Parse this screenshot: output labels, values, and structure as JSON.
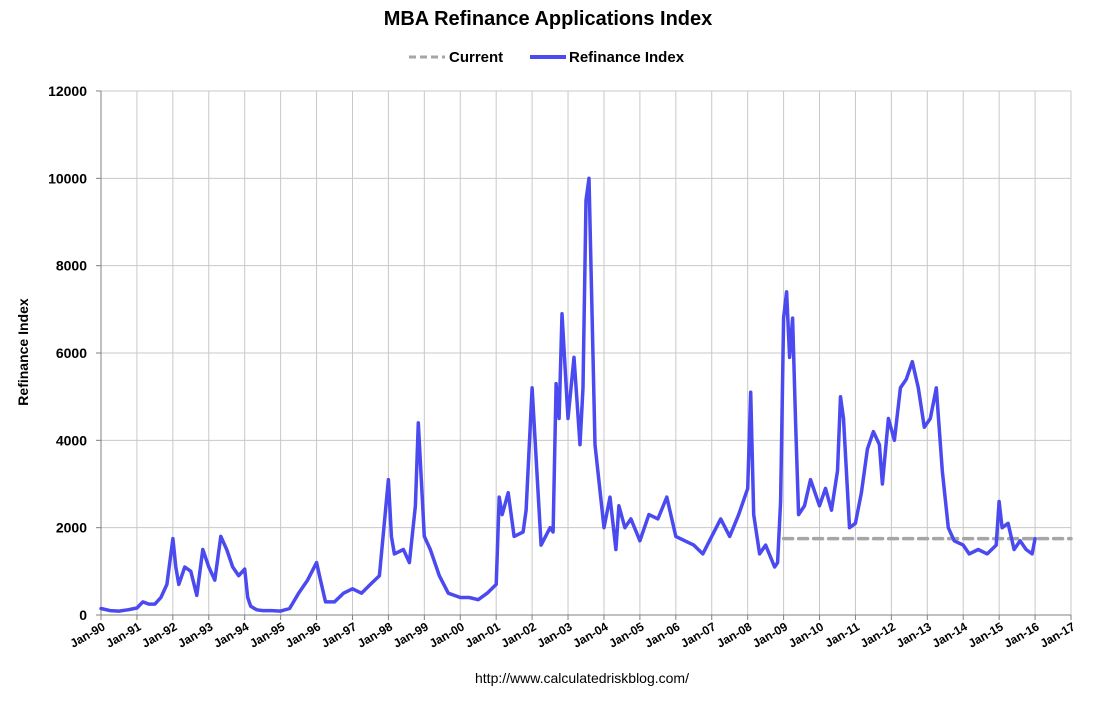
{
  "chart_data": {
    "type": "line",
    "title": "MBA Refinance Applications Index",
    "ylabel": "Refinance Index",
    "xlabel": "",
    "ylim": [
      0,
      12000
    ],
    "xlim": [
      "Jan-90",
      "Jan-17"
    ],
    "y_ticks": [
      "0",
      "2000",
      "4000",
      "6000",
      "8000",
      "10000",
      "12000"
    ],
    "x_ticks": [
      "Jan-90",
      "Jan-91",
      "Jan-92",
      "Jan-93",
      "Jan-94",
      "Jan-95",
      "Jan-96",
      "Jan-97",
      "Jan-98",
      "Jan-99",
      "Jan-00",
      "Jan-01",
      "Jan-02",
      "Jan-03",
      "Jan-04",
      "Jan-05",
      "Jan-06",
      "Jan-07",
      "Jan-08",
      "Jan-09",
      "Jan-10",
      "Jan-11",
      "Jan-12",
      "Jan-13",
      "Jan-14",
      "Jan-15",
      "Jan-16",
      "Jan-17"
    ],
    "grid": true,
    "legend_position": "top-center",
    "source": "http://www.calculatedriskblog.com/",
    "series": [
      {
        "name": "Current",
        "style": "dashed",
        "color": "#a6a6a6",
        "x": [
          "2009-01",
          "2017-01"
        ],
        "y": [
          1750,
          1750
        ]
      },
      {
        "name": "Refinance Index",
        "style": "solid",
        "color": "#4a4af0",
        "x": [
          "1990-01",
          "1990-04",
          "1990-07",
          "1990-10",
          "1991-01",
          "1991-03",
          "1991-05",
          "1991-07",
          "1991-09",
          "1991-11",
          "1992-01",
          "1992-02",
          "1992-03",
          "1992-05",
          "1992-07",
          "1992-09",
          "1992-11",
          "1993-01",
          "1993-03",
          "1993-05",
          "1993-07",
          "1993-09",
          "1993-11",
          "1994-01",
          "1994-02",
          "1994-03",
          "1994-05",
          "1994-07",
          "1994-10",
          "1995-01",
          "1995-04",
          "1995-07",
          "1995-10",
          "1996-01",
          "1996-02",
          "1996-04",
          "1996-07",
          "1996-10",
          "1997-01",
          "1997-04",
          "1997-07",
          "1997-10",
          "1998-01",
          "1998-02",
          "1998-03",
          "1998-06",
          "1998-08",
          "1998-10",
          "1998-11",
          "1999-01",
          "1999-03",
          "1999-06",
          "1999-09",
          "2000-01",
          "2000-04",
          "2000-07",
          "2000-10",
          "2001-01",
          "2001-02",
          "2001-03",
          "2001-05",
          "2001-07",
          "2001-10",
          "2001-11",
          "2002-01",
          "2002-04",
          "2002-07",
          "2002-08",
          "2002-09",
          "2002-10",
          "2002-11",
          "2003-01",
          "2003-03",
          "2003-05",
          "2003-06",
          "2003-07",
          "2003-08",
          "2003-10",
          "2004-01",
          "2004-03",
          "2004-05",
          "2004-06",
          "2004-08",
          "2004-10",
          "2005-01",
          "2005-04",
          "2005-07",
          "2005-10",
          "2006-01",
          "2006-04",
          "2006-07",
          "2006-10",
          "2007-01",
          "2007-04",
          "2007-07",
          "2007-10",
          "2008-01",
          "2008-02",
          "2008-03",
          "2008-05",
          "2008-07",
          "2008-10",
          "2008-11",
          "2008-12",
          "2009-01",
          "2009-02",
          "2009-03",
          "2009-04",
          "2009-05",
          "2009-06",
          "2009-08",
          "2009-10",
          "2010-01",
          "2010-03",
          "2010-05",
          "2010-07",
          "2010-08",
          "2010-09",
          "2010-11",
          "2011-01",
          "2011-03",
          "2011-05",
          "2011-07",
          "2011-09",
          "2011-10",
          "2011-12",
          "2012-02",
          "2012-04",
          "2012-06",
          "2012-08",
          "2012-10",
          "2012-12",
          "2013-02",
          "2013-04",
          "2013-06",
          "2013-08",
          "2013-10",
          "2014-01",
          "2014-03",
          "2014-06",
          "2014-09",
          "2014-12",
          "2015-01",
          "2015-02",
          "2015-04",
          "2015-06",
          "2015-08",
          "2015-10",
          "2015-12",
          "2016-01"
        ],
        "y": [
          150,
          100,
          90,
          120,
          160,
          300,
          250,
          250,
          400,
          700,
          1750,
          1100,
          700,
          1100,
          1000,
          450,
          1500,
          1100,
          800,
          1800,
          1500,
          1100,
          900,
          1050,
          400,
          200,
          120,
          100,
          100,
          90,
          150,
          500,
          800,
          1200,
          900,
          300,
          300,
          500,
          600,
          500,
          700,
          900,
          3100,
          1800,
          1400,
          1500,
          1200,
          2500,
          4400,
          1800,
          1500,
          900,
          500,
          400,
          400,
          350,
          500,
          700,
          2700,
          2300,
          2800,
          1800,
          1900,
          2400,
          5200,
          1600,
          2000,
          1900,
          5300,
          4500,
          6900,
          4500,
          5900,
          3900,
          5200,
          9500,
          10000,
          3900,
          2000,
          2700,
          1500,
          2500,
          2000,
          2200,
          1700,
          2300,
          2200,
          2700,
          1800,
          1700,
          1600,
          1400,
          1800,
          2200,
          1800,
          2300,
          2900,
          5100,
          2300,
          1400,
          1600,
          1100,
          1200,
          2600,
          6800,
          7400,
          5900,
          6800,
          4400,
          2300,
          2500,
          3100,
          2500,
          2900,
          2400,
          3300,
          5000,
          4500,
          2000,
          2100,
          2800,
          3800,
          4200,
          3900,
          3000,
          4500,
          4000,
          5200,
          5400,
          5800,
          5200,
          4300,
          4500,
          5200,
          3300,
          2000,
          1700,
          1600,
          1400,
          1500,
          1400,
          1600,
          2600,
          2000,
          2100,
          1500,
          1700,
          1500,
          1400,
          1750
        ]
      }
    ]
  }
}
